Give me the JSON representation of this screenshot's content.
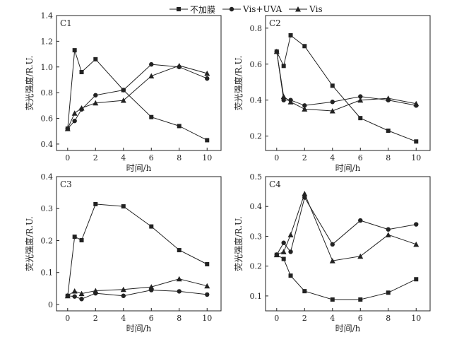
{
  "legend": {
    "items": [
      {
        "label": "不加膜",
        "marker": "square"
      },
      {
        "label": "Vis+UVA",
        "marker": "circle"
      },
      {
        "label": "Vis",
        "marker": "triangle"
      }
    ]
  },
  "colors": {
    "line": "#222222",
    "axis": "#222222"
  },
  "chart_data": [
    {
      "type": "line",
      "panel_label": "C1",
      "x": [
        0,
        0.5,
        1,
        2,
        4,
        6,
        8,
        10
      ],
      "xlim": [
        -0.8,
        11
      ],
      "xticks": [
        0,
        2,
        4,
        6,
        8,
        10
      ],
      "ylim": [
        0.35,
        1.4
      ],
      "yticks": [
        0.4,
        0.6,
        0.8,
        1.0,
        1.2,
        1.4
      ],
      "ytick_labels": [
        "0.4",
        "0.6",
        "0.8",
        "1.0",
        "1.2",
        "1.4"
      ],
      "xlabel": "时间/h",
      "ylabel": "荧光强度/R.U.",
      "series": [
        {
          "name": "不加膜",
          "marker": "square",
          "values": [
            0.52,
            1.13,
            0.96,
            1.06,
            0.82,
            0.61,
            0.54,
            0.43
          ]
        },
        {
          "name": "Vis+UVA",
          "marker": "circle",
          "values": [
            0.52,
            0.58,
            0.67,
            0.78,
            0.82,
            1.02,
            1.0,
            0.91
          ]
        },
        {
          "name": "Vis",
          "marker": "triangle",
          "values": [
            0.52,
            0.64,
            0.68,
            0.72,
            0.74,
            0.93,
            1.01,
            0.95
          ]
        }
      ]
    },
    {
      "type": "line",
      "panel_label": "C2",
      "x": [
        0,
        0.5,
        1,
        2,
        4,
        6,
        8,
        10
      ],
      "xlim": [
        -0.8,
        11
      ],
      "xticks": [
        0,
        2,
        4,
        6,
        8,
        10
      ],
      "ylim": [
        0.12,
        0.87
      ],
      "yticks": [
        0.2,
        0.4,
        0.6,
        0.8
      ],
      "ytick_labels": [
        "0.2",
        "0.4",
        "0.6",
        "0.8"
      ],
      "xlabel": "时间/h",
      "ylabel": "荧光强度/R.U.",
      "series": [
        {
          "name": "不加膜",
          "marker": "square",
          "values": [
            0.67,
            0.59,
            0.76,
            0.7,
            0.48,
            0.3,
            0.23,
            0.17
          ]
        },
        {
          "name": "Vis+UVA",
          "marker": "circle",
          "values": [
            0.67,
            0.4,
            0.4,
            0.37,
            0.39,
            0.42,
            0.4,
            0.37
          ]
        },
        {
          "name": "Vis",
          "marker": "triangle",
          "values": [
            0.67,
            0.42,
            0.39,
            0.35,
            0.34,
            0.4,
            0.41,
            0.38
          ]
        }
      ]
    },
    {
      "type": "line",
      "panel_label": "C3",
      "x": [
        0,
        0.5,
        1,
        2,
        4,
        6,
        8,
        10
      ],
      "xlim": [
        -0.8,
        11
      ],
      "xticks": [
        0,
        2,
        4,
        6,
        8,
        10
      ],
      "ylim": [
        -0.02,
        0.4
      ],
      "yticks": [
        0,
        0.1,
        0.2,
        0.3,
        0.4
      ],
      "ytick_labels": [
        "0",
        "0.1",
        "0.2",
        "0.3",
        "0.4"
      ],
      "xlabel": "时间/h",
      "ylabel": "荧光强度/R.U.",
      "series": [
        {
          "name": "不加膜",
          "marker": "square",
          "values": [
            0.027,
            0.212,
            0.201,
            0.314,
            0.307,
            0.244,
            0.17,
            0.126
          ]
        },
        {
          "name": "Vis+UVA",
          "marker": "circle",
          "values": [
            0.027,
            0.025,
            0.017,
            0.035,
            0.027,
            0.045,
            0.041,
            0.031
          ]
        },
        {
          "name": "Vis",
          "marker": "triangle",
          "values": [
            0.027,
            0.042,
            0.034,
            0.043,
            0.047,
            0.055,
            0.08,
            0.058
          ]
        }
      ]
    },
    {
      "type": "line",
      "panel_label": "C4",
      "x": [
        0,
        0.5,
        1,
        2,
        4,
        6,
        8,
        10
      ],
      "xlim": [
        -0.8,
        11
      ],
      "xticks": [
        0,
        2,
        4,
        6,
        8,
        10
      ],
      "ylim": [
        0.05,
        0.5
      ],
      "yticks": [
        0.1,
        0.2,
        0.3,
        0.4,
        0.5
      ],
      "ytick_labels": [
        "0.1",
        "0.2",
        "0.3",
        "0.4",
        "0.5"
      ],
      "xlabel": "时间/h",
      "ylabel": "荧光强度/R.U.",
      "series": [
        {
          "name": "不加膜",
          "marker": "square",
          "values": [
            0.238,
            0.224,
            0.168,
            0.116,
            0.088,
            0.088,
            0.111,
            0.156
          ]
        },
        {
          "name": "Vis+UVA",
          "marker": "circle",
          "values": [
            0.238,
            0.278,
            0.248,
            0.43,
            0.273,
            0.353,
            0.323,
            0.34
          ]
        },
        {
          "name": "Vis",
          "marker": "triangle",
          "values": [
            0.238,
            0.248,
            0.305,
            0.443,
            0.218,
            0.233,
            0.305,
            0.273
          ]
        }
      ]
    }
  ]
}
